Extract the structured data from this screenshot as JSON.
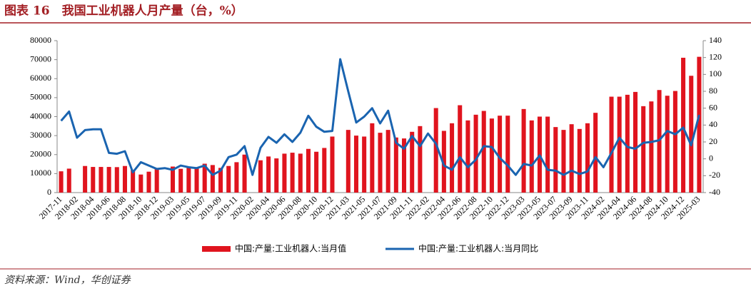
{
  "chart_data": {
    "type": "bar_line",
    "title": "图表 16　我国工业机器人月产量（台，%）",
    "source": "资料来源：Wind，华创证券",
    "categories": [
      "2017-11",
      null,
      "2018-02",
      null,
      "2018-04",
      null,
      "2018-06",
      null,
      "2018-08",
      null,
      "2018-10",
      null,
      "2018-12",
      null,
      "2019-03",
      null,
      "2019-05",
      null,
      "2019-07",
      null,
      "2019-09",
      null,
      "2019-11",
      null,
      "2020-02",
      null,
      "2020-04",
      null,
      "2020-06",
      null,
      "2020-08",
      null,
      "2020-10",
      null,
      "2020-12",
      null,
      "2021-03",
      null,
      "2021-05",
      null,
      "2021-07",
      null,
      "2021-09",
      null,
      "2021-11",
      null,
      "2022-02",
      null,
      "2022-04",
      null,
      "2022-06",
      null,
      "2022-08",
      null,
      "2022-10",
      null,
      "2022-12",
      null,
      "2023-03",
      null,
      "2023-05",
      null,
      "2023-07",
      null,
      "2023-09",
      null,
      "2023-11",
      null,
      "2024-02",
      null,
      "2024-04",
      null,
      "2024-06",
      null,
      "2024-08",
      null,
      "2024-10",
      null,
      "2024-12",
      null,
      "2025-03"
    ],
    "series": [
      {
        "name": "中国:产量:工业机器人:当月值",
        "type": "bar",
        "color": "#e0141e",
        "axis": "y",
        "values": [
          11200,
          12600,
          null,
          14000,
          13500,
          13500,
          13500,
          13400,
          14000,
          12000,
          9500,
          11000,
          12500,
          null,
          13700,
          12500,
          13000,
          13000,
          15200,
          14500,
          13000,
          14000,
          16000,
          20000,
          null,
          17000,
          19000,
          18000,
          20500,
          21000,
          20500,
          23000,
          21500,
          23500,
          29500,
          null,
          33000,
          30000,
          29500,
          36500,
          31500,
          33000,
          29000,
          28500,
          32000,
          35000,
          null,
          44500,
          32500,
          36500,
          46000,
          38000,
          41000,
          43000,
          39000,
          40500,
          40500,
          null,
          44000,
          38000,
          40000,
          40000,
          34500,
          33000,
          36000,
          33500,
          36500,
          42000,
          null,
          50500,
          50500,
          51500,
          53000,
          45500,
          48000,
          54000,
          51000,
          53500,
          71000,
          61500,
          71500
        ]
      },
      {
        "name": "中国:产量:工业机器人:当月同比",
        "type": "line",
        "color": "#1a64b0",
        "axis": "y2",
        "values": [
          45,
          56,
          25,
          34,
          35,
          35,
          7,
          6,
          9,
          -16,
          -4,
          -8,
          -12,
          -11,
          -13,
          -8,
          -10,
          -11,
          -8,
          -19,
          -14,
          2,
          5,
          15,
          -19,
          13,
          26,
          19,
          29,
          20,
          31,
          51,
          38,
          32,
          33,
          118,
          80,
          43,
          50,
          60,
          42,
          57,
          19,
          12,
          27,
          15,
          30,
          18,
          -8,
          -13,
          2,
          -10,
          -1,
          15,
          14,
          1,
          -8,
          -19,
          -6,
          -8,
          4,
          -13,
          -14,
          -19,
          -14,
          -18,
          -15,
          2,
          -10,
          7,
          25,
          14,
          12,
          19,
          20,
          22,
          33,
          29,
          37,
          16,
          52
        ]
      }
    ],
    "ylim": [
      0,
      80000
    ],
    "yticks": [
      0,
      10000,
      20000,
      30000,
      40000,
      50000,
      60000,
      70000,
      80000
    ],
    "y2lim": [
      -40,
      140
    ],
    "y2ticks": [
      -40,
      -20,
      0,
      20,
      40,
      60,
      80,
      100,
      120,
      140
    ],
    "legend": "bottom"
  }
}
